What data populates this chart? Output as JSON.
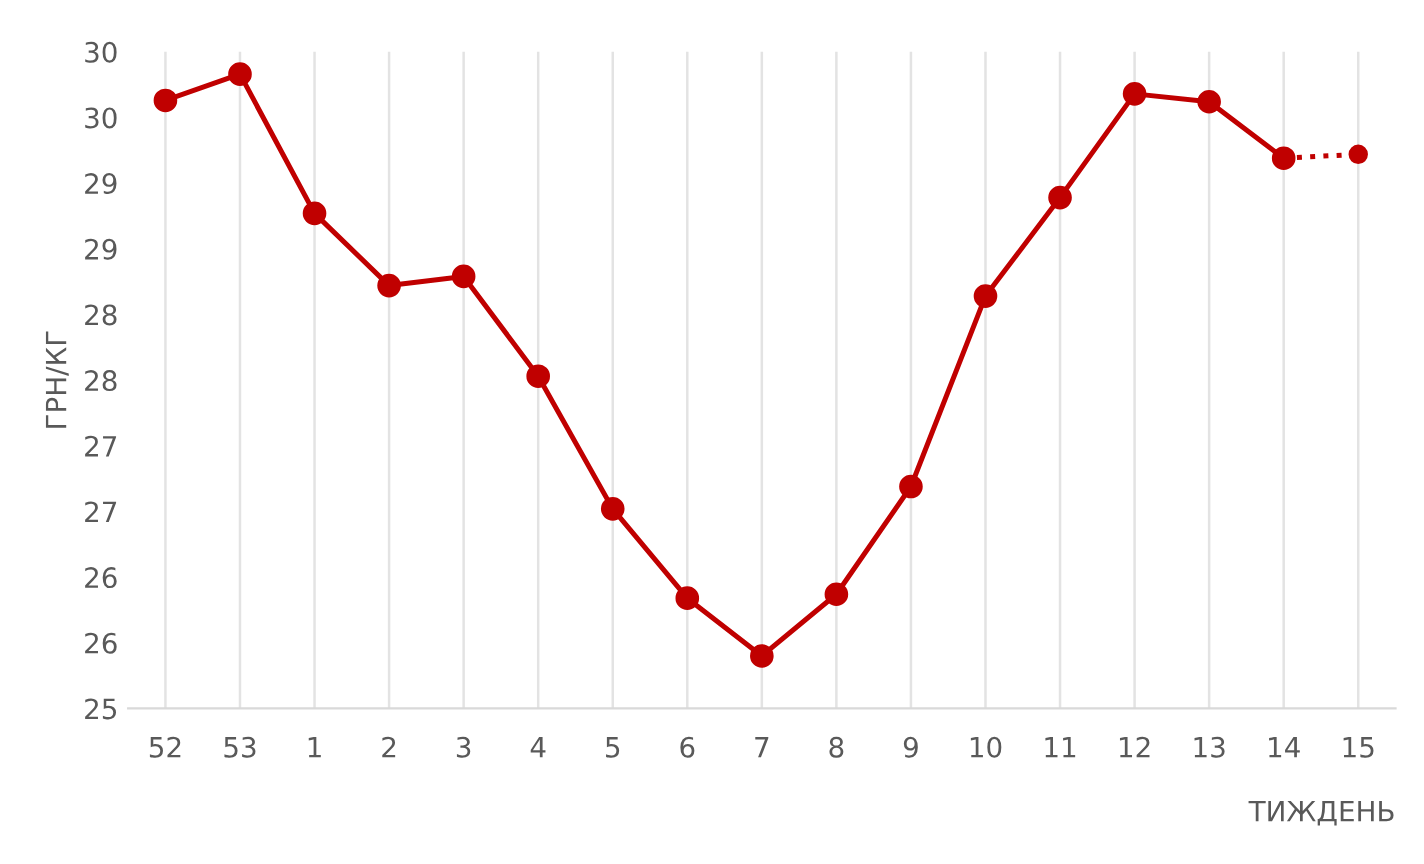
{
  "chart_data": {
    "type": "line",
    "xlabel": "ТИЖДЕНЬ",
    "ylabel": "ГРН/КГ",
    "categories": [
      "52",
      "53",
      "1",
      "2",
      "3",
      "4",
      "5",
      "6",
      "7",
      "8",
      "9",
      "10",
      "11",
      "12",
      "13",
      "14",
      "15"
    ],
    "series": [
      {
        "color": "#c00000",
        "values": [
          29.63,
          29.83,
          28.77,
          28.22,
          28.29,
          27.53,
          26.52,
          25.84,
          25.4,
          25.87,
          26.69,
          28.14,
          28.89,
          29.68,
          29.62,
          29.19,
          null
        ]
      },
      {
        "color": "#c00000",
        "line_style": "dotted",
        "values": [
          null,
          null,
          null,
          null,
          null,
          null,
          null,
          null,
          null,
          null,
          null,
          null,
          null,
          null,
          null,
          29.19,
          29.22
        ]
      }
    ],
    "ylim": [
      25,
      30
    ],
    "yticks": [
      25,
      {
        "value": 25.5,
        "label": "26"
      },
      {
        "value": 26,
        "label": "26"
      },
      {
        "value": 26.5,
        "label": "27"
      },
      {
        "value": 27,
        "label": "27"
      },
      {
        "value": 27.5,
        "label": "28"
      },
      {
        "value": 28,
        "label": "28"
      },
      {
        "value": 28.5,
        "label": "29"
      },
      {
        "value": 29,
        "label": "29"
      },
      {
        "value": 29.5,
        "label": "30"
      },
      {
        "value": 30,
        "label": "30"
      }
    ],
    "grid": "x",
    "marker": "circle",
    "line_style": "solid"
  }
}
